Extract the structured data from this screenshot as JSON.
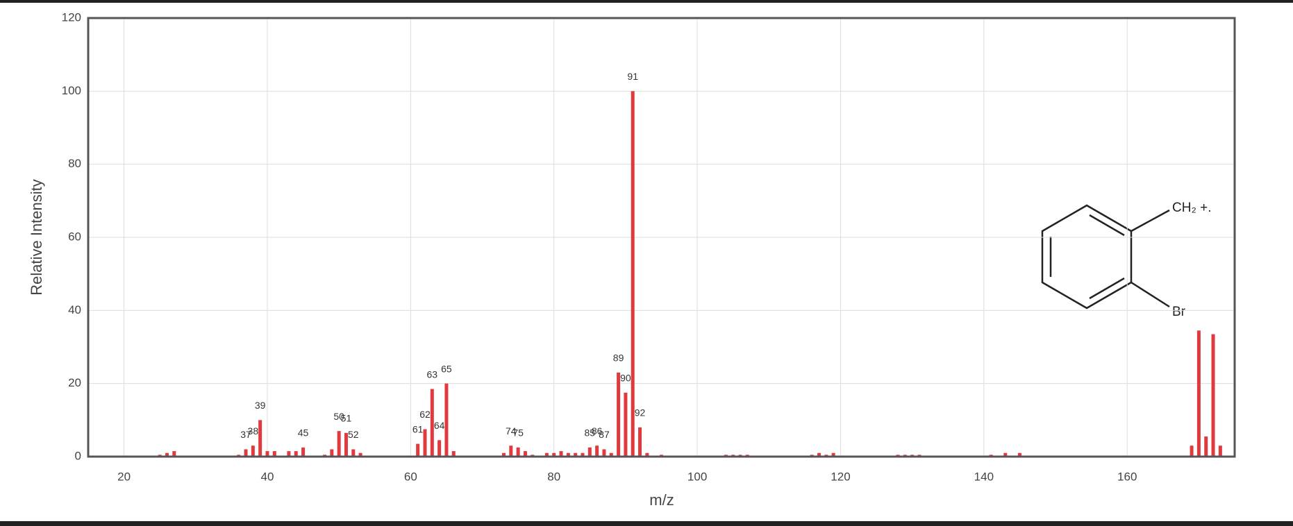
{
  "chart_data": {
    "type": "bar",
    "x": [
      25,
      26,
      27,
      36,
      37,
      38,
      39,
      40,
      41,
      43,
      44,
      45,
      48,
      49,
      50,
      51,
      52,
      53,
      61,
      62,
      63,
      64,
      65,
      66,
      73,
      74,
      75,
      76,
      77,
      79,
      80,
      81,
      82,
      83,
      84,
      85,
      86,
      87,
      88,
      89,
      90,
      91,
      92,
      93,
      95,
      104,
      105,
      106,
      107,
      116,
      117,
      118,
      119,
      128,
      129,
      130,
      131,
      141,
      143,
      145,
      169,
      170,
      171,
      172,
      173
    ],
    "values": [
      0.5,
      1,
      1.5,
      0.5,
      2,
      3,
      10,
      1.5,
      1.5,
      1.5,
      1.5,
      2.5,
      0.5,
      2,
      7,
      6.5,
      2,
      1,
      3.5,
      7.5,
      18.5,
      4.5,
      20,
      1.5,
      1,
      3,
      2.5,
      1.5,
      0.5,
      1,
      1,
      1.5,
      1,
      1,
      1,
      2.5,
      3,
      2,
      1,
      23,
      17.5,
      100,
      8,
      1,
      0.5,
      0.5,
      0.5,
      0.5,
      0.5,
      0.5,
      1,
      0.5,
      1,
      0.5,
      0.5,
      0.5,
      0.5,
      0.5,
      1,
      1,
      3,
      34.5,
      5.5,
      33.5,
      3
    ],
    "peak_labels": [
      null,
      null,
      null,
      null,
      "37",
      "38",
      "39",
      null,
      null,
      null,
      null,
      "45",
      null,
      null,
      "50",
      "51",
      "52",
      null,
      "61",
      "62",
      "63",
      "64",
      "65",
      null,
      null,
      "74",
      "75",
      null,
      null,
      null,
      null,
      null,
      null,
      null,
      null,
      "85",
      "86",
      "87",
      null,
      "89",
      "90",
      "91",
      "92",
      null,
      null,
      null,
      null,
      null,
      null,
      null,
      null,
      null,
      null,
      null,
      null,
      null,
      null,
      null,
      null,
      null,
      null,
      null,
      null,
      null,
      null
    ],
    "color": "#e0393e",
    "xlabel": "m/z",
    "ylabel": "Relative Intensity",
    "xlim": [
      15,
      175
    ],
    "xticks": [
      20,
      40,
      60,
      80,
      100,
      120,
      140,
      160
    ],
    "ylim": [
      0,
      120
    ],
    "yticks": [
      0,
      20,
      40,
      60,
      80,
      100,
      120
    ],
    "grid": true,
    "annotations": [
      "CH₂ +.",
      "Br"
    ]
  }
}
